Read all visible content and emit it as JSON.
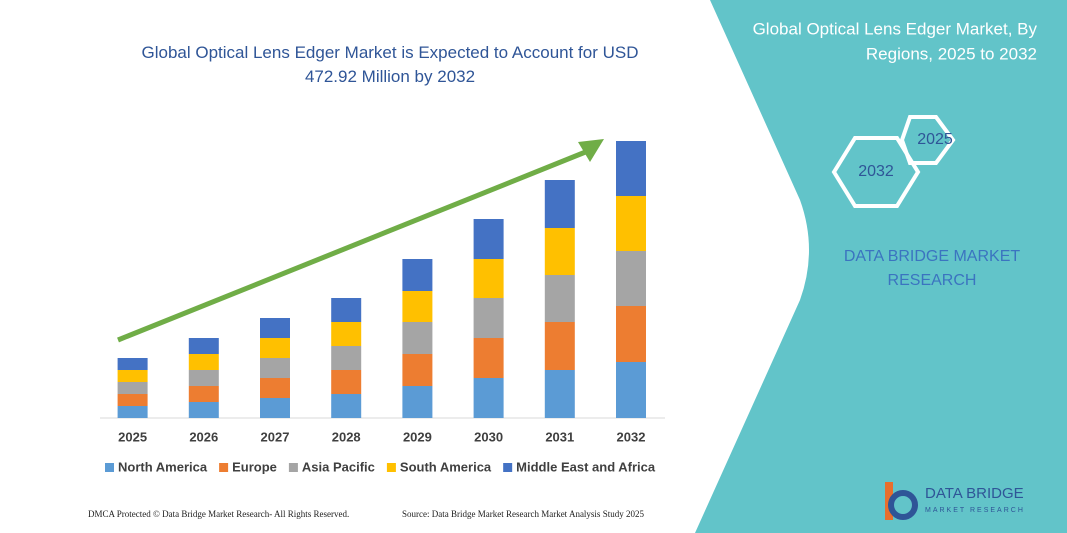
{
  "chart_data": {
    "type": "bar",
    "stacked": true,
    "title": "Global Optical Lens Edger Market is Expected to Account for USD 472.92 Million by 2032",
    "categories": [
      "2025",
      "2026",
      "2027",
      "2028",
      "2029",
      "2030",
      "2031",
      "2032"
    ],
    "series": [
      {
        "name": "North America",
        "color": "#5b9bd5",
        "values": [
          12,
          16,
          20,
          24,
          32,
          40,
          48,
          56
        ]
      },
      {
        "name": "Europe",
        "color": "#ed7d31",
        "values": [
          12,
          16,
          20,
          24,
          32,
          40,
          48,
          56
        ]
      },
      {
        "name": "Asia Pacific",
        "color": "#a5a5a5",
        "values": [
          12,
          16,
          20,
          24,
          32,
          40,
          47,
          55
        ]
      },
      {
        "name": "South America",
        "color": "#ffc000",
        "values": [
          12,
          16,
          20,
          24,
          31,
          39,
          47,
          55
        ]
      },
      {
        "name": "Middle East and Africa",
        "color": "#4472c4",
        "values": [
          12,
          16,
          20,
          24,
          32,
          40,
          48,
          55
        ]
      }
    ],
    "ylim": [
      0,
      300
    ]
  },
  "panel": {
    "title_line1": "Global Optical Lens Edger Market, By",
    "title_line2": "Regions, 2025 to 2032",
    "hex_small": "2025",
    "hex_large": "2032",
    "brand_line1": "DATA BRIDGE MARKET",
    "brand_line2": "RESEARCH"
  },
  "footer": {
    "left": "DMCA Protected © Data Bridge Market Research- All Rights Reserved.",
    "right": "Source: Data Bridge Market Research Market Analysis Study 2025"
  },
  "logo": {
    "name": "DATA BRIDGE",
    "tagline": "MARKET RESEARCH"
  }
}
